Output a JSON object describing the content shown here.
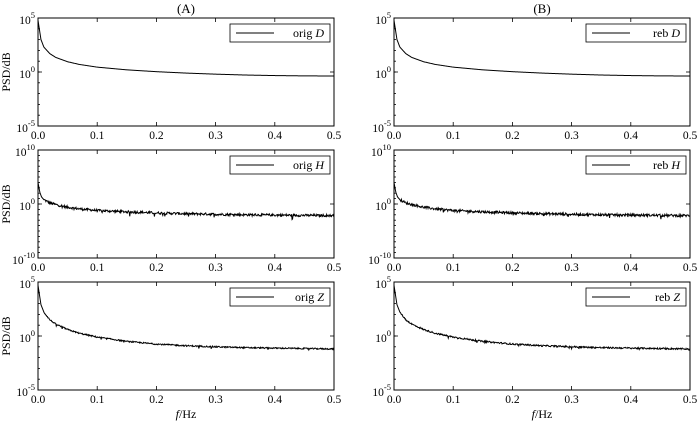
{
  "chart_data": [
    {
      "type": "line",
      "panel_title": "(A)",
      "ylabel": "PSD/dB",
      "xlabel": "",
      "legend": "orig",
      "legend_var": "D",
      "xlim": [
        0,
        0.5
      ],
      "ylim_exp": [
        -5,
        5
      ],
      "yticks": [
        {
          "base": "10",
          "exp": "5"
        },
        {
          "base": "10",
          "exp": "0"
        },
        {
          "base": "10",
          "exp": "-5"
        }
      ],
      "xticks": [
        "0.0",
        "0.1",
        "0.2",
        "0.3",
        "0.4",
        "0.5"
      ],
      "series": [
        {
          "name": "orig D",
          "x": [
            0.0,
            0.005,
            0.01,
            0.02,
            0.03,
            0.05,
            0.07,
            0.1,
            0.15,
            0.2,
            0.25,
            0.3,
            0.35,
            0.4,
            0.45,
            0.5
          ],
          "y_log10": [
            4.8,
            3.0,
            2.3,
            1.7,
            1.35,
            0.95,
            0.7,
            0.45,
            0.2,
            0.03,
            -0.1,
            -0.2,
            -0.28,
            -0.33,
            -0.36,
            -0.37
          ]
        }
      ],
      "noise_amp": 0
    },
    {
      "type": "line",
      "panel_title": "(B)",
      "ylabel": "",
      "xlabel": "",
      "legend": "reb",
      "legend_var": "D",
      "xlim": [
        0,
        0.5
      ],
      "ylim_exp": [
        -5,
        5
      ],
      "yticks": [
        {
          "base": "10",
          "exp": "5"
        },
        {
          "base": "10",
          "exp": "0"
        },
        {
          "base": "10",
          "exp": "-5"
        }
      ],
      "xticks": [
        "0.0",
        "0.1",
        "0.2",
        "0.3",
        "0.4",
        "0.5"
      ],
      "series": [
        {
          "name": "reb D",
          "x": [
            0.0,
            0.005,
            0.01,
            0.02,
            0.03,
            0.05,
            0.07,
            0.1,
            0.15,
            0.2,
            0.25,
            0.3,
            0.35,
            0.4,
            0.45,
            0.5
          ],
          "y_log10": [
            4.8,
            3.0,
            2.3,
            1.7,
            1.35,
            0.95,
            0.7,
            0.45,
            0.2,
            0.03,
            -0.1,
            -0.2,
            -0.28,
            -0.33,
            -0.36,
            -0.37
          ]
        }
      ],
      "noise_amp": 0
    },
    {
      "type": "line",
      "panel_title": "",
      "ylabel": "PSD/dB",
      "xlabel": "",
      "legend": "orig",
      "legend_var": "H",
      "xlim": [
        0,
        0.5
      ],
      "ylim_exp": [
        -10,
        10
      ],
      "yticks": [
        {
          "base": "10",
          "exp": "10"
        },
        {
          "base": "10",
          "exp": "0"
        },
        {
          "base": "10",
          "exp": "-10"
        }
      ],
      "xticks": [
        "0.0",
        "0.1",
        "0.2",
        "0.3",
        "0.4",
        "0.5"
      ],
      "series": [
        {
          "name": "orig H",
          "x": [
            0.0,
            0.003,
            0.006,
            0.01,
            0.02,
            0.03,
            0.05,
            0.07,
            0.1,
            0.15,
            0.2,
            0.25,
            0.3,
            0.35,
            0.4,
            0.45,
            0.5
          ],
          "y_log10": [
            4.0,
            2.2,
            1.3,
            0.8,
            0.2,
            -0.1,
            -0.6,
            -0.9,
            -1.2,
            -1.45,
            -1.65,
            -1.8,
            -1.9,
            -2.0,
            -2.05,
            -2.1,
            -2.15
          ]
        }
      ],
      "noise_amp": 0.45
    },
    {
      "type": "line",
      "panel_title": "",
      "ylabel": "",
      "xlabel": "",
      "legend": "reb",
      "legend_var": "H",
      "xlim": [
        0,
        0.5
      ],
      "ylim_exp": [
        -10,
        10
      ],
      "yticks": [
        {
          "base": "10",
          "exp": "10"
        },
        {
          "base": "10",
          "exp": "0"
        },
        {
          "base": "10",
          "exp": "-10"
        }
      ],
      "xticks": [
        "0.0",
        "0.1",
        "0.2",
        "0.3",
        "0.4",
        "0.5"
      ],
      "series": [
        {
          "name": "reb H",
          "x": [
            0.0,
            0.003,
            0.006,
            0.01,
            0.02,
            0.03,
            0.05,
            0.07,
            0.1,
            0.15,
            0.2,
            0.25,
            0.3,
            0.35,
            0.4,
            0.45,
            0.5
          ],
          "y_log10": [
            4.0,
            2.2,
            1.3,
            0.8,
            0.2,
            -0.1,
            -0.6,
            -0.9,
            -1.2,
            -1.45,
            -1.65,
            -1.8,
            -1.9,
            -2.0,
            -2.05,
            -2.1,
            -2.15
          ]
        }
      ],
      "noise_amp": 0.45
    },
    {
      "type": "line",
      "panel_title": "",
      "ylabel": "PSD/dB",
      "xlabel": "f/Hz",
      "xlabel_var": "f",
      "xlabel_unit": "/Hz",
      "legend": "orig",
      "legend_var": "Z",
      "xlim": [
        0,
        0.5
      ],
      "ylim_exp": [
        -5,
        5
      ],
      "yticks": [
        {
          "base": "10",
          "exp": "5"
        },
        {
          "base": "10",
          "exp": "0"
        },
        {
          "base": "10",
          "exp": "-5"
        }
      ],
      "xticks": [
        "0.0",
        "0.1",
        "0.2",
        "0.3",
        "0.4",
        "0.5"
      ],
      "series": [
        {
          "name": "orig Z",
          "x": [
            0.0,
            0.005,
            0.01,
            0.02,
            0.03,
            0.05,
            0.07,
            0.1,
            0.15,
            0.2,
            0.25,
            0.3,
            0.35,
            0.4,
            0.45,
            0.5
          ],
          "y_log10": [
            4.7,
            2.9,
            2.2,
            1.5,
            1.1,
            0.6,
            0.25,
            -0.1,
            -0.5,
            -0.75,
            -0.9,
            -1.0,
            -1.08,
            -1.12,
            -1.16,
            -1.2
          ]
        }
      ],
      "noise_amp": 0.12
    },
    {
      "type": "line",
      "panel_title": "",
      "ylabel": "",
      "xlabel": "f/Hz",
      "xlabel_var": "f",
      "xlabel_unit": "/Hz",
      "legend": "reb",
      "legend_var": "Z",
      "xlim": [
        0,
        0.5
      ],
      "ylim_exp": [
        -5,
        5
      ],
      "yticks": [
        {
          "base": "10",
          "exp": "5"
        },
        {
          "base": "10",
          "exp": "0"
        },
        {
          "base": "10",
          "exp": "-5"
        }
      ],
      "xticks": [
        "0.0",
        "0.1",
        "0.2",
        "0.3",
        "0.4",
        "0.5"
      ],
      "series": [
        {
          "name": "reb Z",
          "x": [
            0.0,
            0.005,
            0.01,
            0.02,
            0.03,
            0.05,
            0.07,
            0.1,
            0.15,
            0.2,
            0.25,
            0.3,
            0.35,
            0.4,
            0.45,
            0.5
          ],
          "y_log10": [
            4.7,
            2.9,
            2.2,
            1.5,
            1.1,
            0.6,
            0.25,
            -0.1,
            -0.5,
            -0.75,
            -0.9,
            -1.0,
            -1.08,
            -1.12,
            -1.16,
            -1.2
          ]
        }
      ],
      "noise_amp": 0.14
    }
  ]
}
